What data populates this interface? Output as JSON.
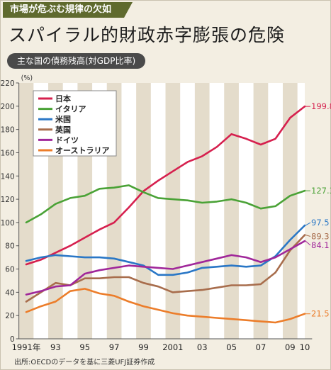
{
  "header": {
    "tag": "市場が危ぶむ規律の欠如",
    "headline": "スパイラル的財政赤字膨張の危険"
  },
  "chart_data": {
    "type": "line",
    "title": "主な国の債務残高(対GDP比率)",
    "y_unit": "(%)",
    "ylim": [
      0,
      220
    ],
    "y_ticks": [
      0,
      20,
      40,
      60,
      80,
      100,
      120,
      140,
      160,
      180,
      200,
      220
    ],
    "x": [
      1991,
      1992,
      1993,
      1994,
      1995,
      1996,
      1997,
      1998,
      1999,
      2000,
      2001,
      2002,
      2003,
      2004,
      2005,
      2006,
      2007,
      2008,
      2009,
      2010
    ],
    "x_tick_labels": [
      {
        "x": 1991,
        "label": "1991年"
      },
      {
        "x": 1993,
        "label": "93"
      },
      {
        "x": 1995,
        "label": "95"
      },
      {
        "x": 1997,
        "label": "97"
      },
      {
        "x": 1999,
        "label": "99"
      },
      {
        "x": 2001,
        "label": "2001"
      },
      {
        "x": 2003,
        "label": "03"
      },
      {
        "x": 2005,
        "label": "05"
      },
      {
        "x": 2007,
        "label": "07"
      },
      {
        "x": 2009,
        "label": "09"
      },
      {
        "x": 2010,
        "label": "10"
      }
    ],
    "grid": false,
    "background": "alternating vertical stripes per year",
    "legend_position": "top-left",
    "series": [
      {
        "name": "日本",
        "color": "#d6204e",
        "end_label": "199.8",
        "values": [
          64,
          68,
          74,
          80,
          87,
          94,
          100,
          113,
          127,
          136,
          144,
          152,
          157,
          165,
          176,
          172,
          167,
          172,
          190,
          199.8
        ]
      },
      {
        "name": "イタリア",
        "color": "#4aa236",
        "end_label": "127.3",
        "values": [
          100,
          107,
          116,
          121,
          123,
          129,
          130,
          132,
          126,
          121,
          120,
          119,
          117,
          118,
          120,
          117,
          112,
          114,
          123,
          127.3
        ]
      },
      {
        "name": "米国",
        "color": "#2a77c6",
        "end_label": "97.5",
        "values": [
          67,
          70,
          72,
          71,
          70,
          70,
          69,
          66,
          63,
          55,
          55,
          57,
          61,
          62,
          63,
          62,
          63,
          71,
          85,
          97.5
        ]
      },
      {
        "name": "英国",
        "color": "#a86d4c",
        "end_label": "89.3",
        "values": [
          32,
          40,
          48,
          46,
          52,
          52,
          53,
          53,
          48,
          45,
          40,
          41,
          42,
          44,
          46,
          46,
          47,
          57,
          76,
          89.3
        ]
      },
      {
        "name": "ドイツ",
        "color": "#a0279a",
        "end_label": "84.1",
        "values": [
          38,
          41,
          45,
          46,
          56,
          59,
          61,
          63,
          62,
          61,
          60,
          63,
          66,
          69,
          72,
          70,
          66,
          70,
          77,
          84.1
        ]
      },
      {
        "name": "オーストラリア",
        "color": "#ec7d2a",
        "end_label": "21.5",
        "values": [
          23,
          28,
          32,
          41,
          43,
          39,
          37,
          32,
          28,
          25,
          22,
          20,
          19,
          18,
          17,
          16,
          15,
          14,
          17,
          21.5
        ]
      }
    ]
  },
  "source": "出所:OECDのデータを基に三菱UFJ証券作成"
}
